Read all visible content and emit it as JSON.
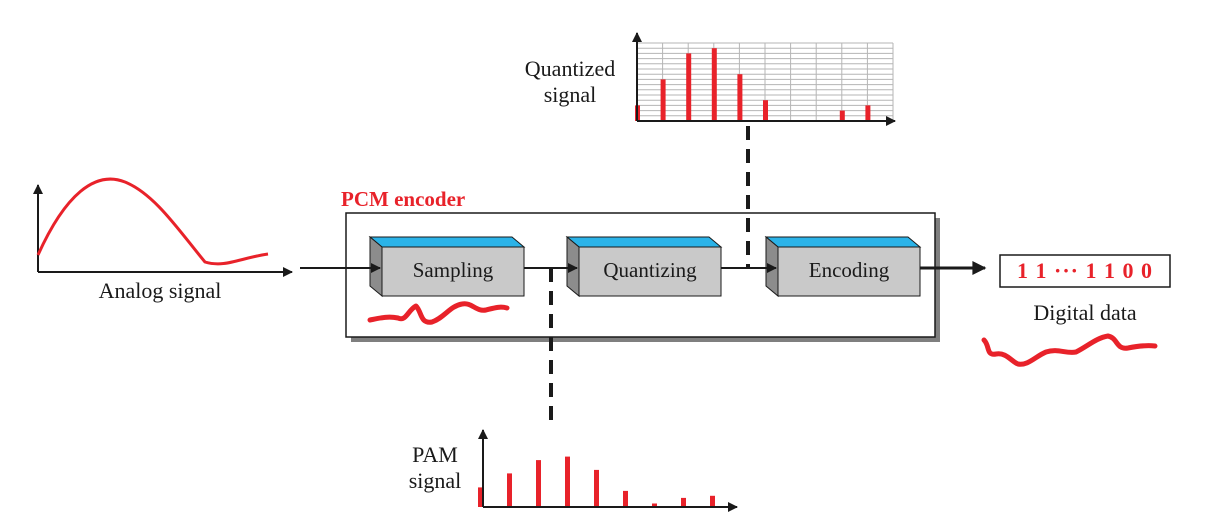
{
  "colors": {
    "accent": "#e8222a",
    "block_top": "#2bb3e8",
    "block_front": "#c9c9c9",
    "block_side": "#8c8c8c",
    "ink": "#1a1a1a"
  },
  "encoder": {
    "title": "PCM encoder",
    "blocks": [
      "Sampling",
      "Quantizing",
      "Encoding"
    ]
  },
  "input": {
    "label": "Analog signal"
  },
  "output": {
    "bits": "1 1 ··· 1 1 0 0",
    "label": "Digital data"
  },
  "quantized": {
    "label_line1": "Quantized",
    "label_line2": "signal",
    "levels": [
      3,
      8,
      13,
      14,
      9,
      4,
      0,
      0,
      2,
      3
    ]
  },
  "pam": {
    "label_line1": "PAM",
    "label_line2": "signal",
    "amplitudes": [
      0.28,
      0.48,
      0.67,
      0.72,
      0.53,
      0.23,
      0.05,
      0.13,
      0.16
    ]
  }
}
